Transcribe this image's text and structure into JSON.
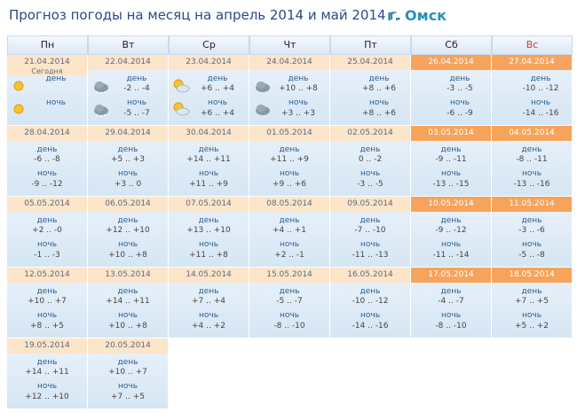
{
  "header": {
    "title": "Прогноз погоды на месяц на апрель 2014 и май 2014 г.",
    "city": "г. Омск"
  },
  "labels": {
    "day": "день",
    "night": "ночь"
  },
  "weekdays": [
    "Пн",
    "Вт",
    "Ср",
    "Чт",
    "Пт",
    "Сб",
    "Вс"
  ],
  "weeks": [
    [
      {
        "date": "21.04.2014",
        "note": "Сегодня"
      },
      {
        "date": "22.04.2014",
        "day": "-2 .. -4",
        "night": "-5 .. -7"
      },
      {
        "date": "23.04.2014",
        "day": "+6 .. +4",
        "night": "+6 .. +4"
      },
      {
        "date": "24.04.2014",
        "day": "+10 .. +8",
        "night": "+3 .. +3"
      },
      {
        "date": "25.04.2014",
        "day": "+8 .. +6",
        "night": "+8 .. +6"
      },
      {
        "date": "26.04.2014",
        "day": "-3 .. -5",
        "night": "-6 .. -9"
      },
      {
        "date": "27.04.2014",
        "day": "-10 .. -12",
        "night": "-14 .. -16"
      }
    ],
    [
      {
        "date": "28.04.2014",
        "day": "-6 .. -8",
        "night": "-9 .. -12"
      },
      {
        "date": "29.04.2014",
        "day": "+5 .. +3",
        "night": "+3 .. 0"
      },
      {
        "date": "30.04.2014",
        "day": "+14 .. +11",
        "night": "+11 .. +9"
      },
      {
        "date": "01.05.2014",
        "day": "+11 .. +9",
        "night": "+9 .. +6"
      },
      {
        "date": "02.05.2014",
        "day": "0 .. -2",
        "night": "-3 .. -5"
      },
      {
        "date": "03.05.2014",
        "day": "-9 .. -11",
        "night": "-13 .. -15"
      },
      {
        "date": "04.05.2014",
        "day": "-8 .. -11",
        "night": "-13 .. -16"
      }
    ],
    [
      {
        "date": "05.05.2014",
        "day": "+2 .. -0",
        "night": "-1 .. -3"
      },
      {
        "date": "06.05.2014",
        "day": "+12 .. +10",
        "night": "+10 .. +8"
      },
      {
        "date": "07.05.2014",
        "day": "+13 .. +10",
        "night": "+11 .. +8"
      },
      {
        "date": "08.05.2014",
        "day": "+4 .. +1",
        "night": "+2 .. -1"
      },
      {
        "date": "09.05.2014",
        "day": "-7 .. -10",
        "night": "-11 .. -13"
      },
      {
        "date": "10.05.2014",
        "day": "-9 .. -12",
        "night": "-11 .. -14"
      },
      {
        "date": "11.05.2014",
        "day": "-3 .. -6",
        "night": "-5 .. -8"
      }
    ],
    [
      {
        "date": "12.05.2014",
        "day": "+10 .. +7",
        "night": "+8 .. +5"
      },
      {
        "date": "13.05.2014",
        "day": "+14 .. +11",
        "night": "+10 .. +8"
      },
      {
        "date": "14.05.2014",
        "day": "+7 .. +4",
        "night": "+4 .. +2"
      },
      {
        "date": "15.05.2014",
        "day": "-5 .. -7",
        "night": "-8 .. -10"
      },
      {
        "date": "16.05.2014",
        "day": "-10 .. -12",
        "night": "-14 .. -16"
      },
      {
        "date": "17.05.2014",
        "day": "-4 .. -7",
        "night": "-8 .. -10"
      },
      {
        "date": "18.05.2014",
        "day": "+7 .. +5",
        "night": "+5 .. +2"
      }
    ],
    [
      {
        "date": "19.05.2014",
        "day": "+14 .. +11",
        "night": "+12 .. +10"
      },
      {
        "date": "20.05.2014",
        "day": "+10 .. +7",
        "night": "+7 .. +5"
      }
    ]
  ]
}
